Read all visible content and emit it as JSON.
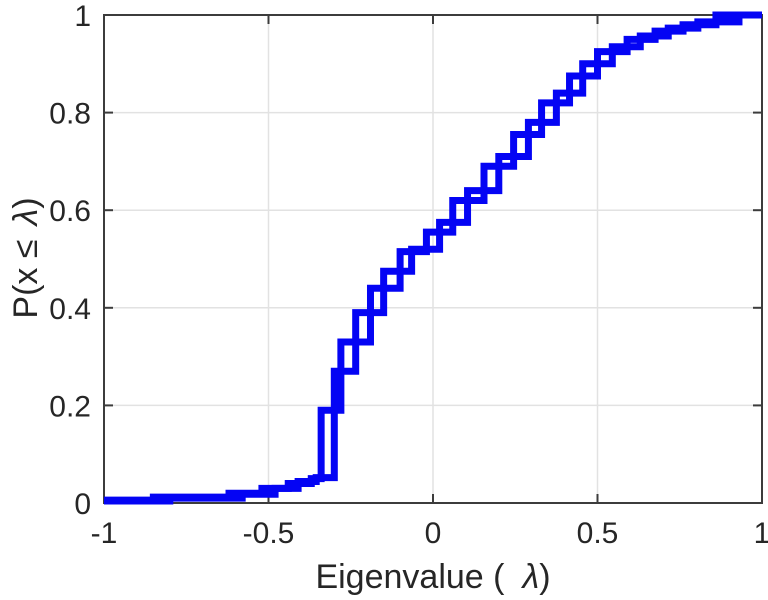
{
  "figure": {
    "background": "#FFFFFF"
  },
  "chart_data": {
    "type": "line",
    "subtype": "ecdf-stairs",
    "title": "",
    "xlabel": "Eigenvalue ( λ)",
    "ylabel": "P(x ≤ λ)",
    "xlabel_parts": {
      "prefix": "Eigenvalue (",
      "symbol": "λ",
      "suffix": ")"
    },
    "ylabel_parts": {
      "prefix": "P(x ≤",
      "symbol": "λ",
      "suffix": ")"
    },
    "xlim": [
      -1,
      1
    ],
    "ylim": [
      0,
      1
    ],
    "x_ticks": [
      {
        "value": -1,
        "label": "-1"
      },
      {
        "value": -0.5,
        "label": "-0.5"
      },
      {
        "value": 0,
        "label": "0"
      },
      {
        "value": 0.5,
        "label": "0.5"
      },
      {
        "value": 1,
        "label": "1"
      }
    ],
    "y_ticks": [
      {
        "value": 0,
        "label": "0"
      },
      {
        "value": 0.2,
        "label": "0.2"
      },
      {
        "value": 0.4,
        "label": "0.4"
      },
      {
        "value": 0.6,
        "label": "0.6"
      },
      {
        "value": 0.8,
        "label": "0.8"
      },
      {
        "value": 1,
        "label": "1"
      }
    ],
    "grid": true,
    "grid_x_values": [
      -0.5,
      0,
      0.5
    ],
    "grid_y_values": [
      0.2,
      0.4,
      0.6,
      0.8
    ],
    "legend": null,
    "line_color": "#0404F4",
    "grid_color": "#E2E2E2",
    "axis_color": "#3C3C3C",
    "label_color": "#262626",
    "line_width": 7,
    "series": [
      {
        "name": "ecdf-curve-1",
        "start_y": 0.006,
        "jumps": [
          [
            -0.85,
            0.012
          ],
          [
            -0.62,
            0.02
          ],
          [
            -0.52,
            0.03
          ],
          [
            -0.44,
            0.04
          ],
          [
            -0.37,
            0.05
          ],
          [
            -0.34,
            0.19
          ],
          [
            -0.28,
            0.33
          ],
          [
            -0.19,
            0.44
          ],
          [
            -0.1,
            0.515
          ],
          [
            -0.02,
            0.555
          ],
          [
            0.06,
            0.62
          ],
          [
            0.155,
            0.69
          ],
          [
            0.245,
            0.755
          ],
          [
            0.33,
            0.82
          ],
          [
            0.415,
            0.875
          ],
          [
            0.5,
            0.925
          ],
          [
            0.59,
            0.95
          ],
          [
            0.675,
            0.967
          ],
          [
            0.76,
            0.98
          ],
          [
            0.86,
            1.0
          ]
        ]
      },
      {
        "name": "ecdf-curve-2",
        "start_y": 0.004,
        "jumps": [
          [
            -0.8,
            0.01
          ],
          [
            -0.58,
            0.018
          ],
          [
            -0.48,
            0.03
          ],
          [
            -0.41,
            0.044
          ],
          [
            -0.355,
            0.052
          ],
          [
            -0.3,
            0.27
          ],
          [
            -0.235,
            0.39
          ],
          [
            -0.15,
            0.475
          ],
          [
            -0.065,
            0.52
          ],
          [
            0.02,
            0.575
          ],
          [
            0.105,
            0.64
          ],
          [
            0.2,
            0.71
          ],
          [
            0.29,
            0.78
          ],
          [
            0.375,
            0.84
          ],
          [
            0.455,
            0.9
          ],
          [
            0.545,
            0.935
          ],
          [
            0.63,
            0.957
          ],
          [
            0.715,
            0.973
          ],
          [
            0.805,
            0.986
          ],
          [
            0.93,
            1.0
          ]
        ]
      }
    ]
  }
}
